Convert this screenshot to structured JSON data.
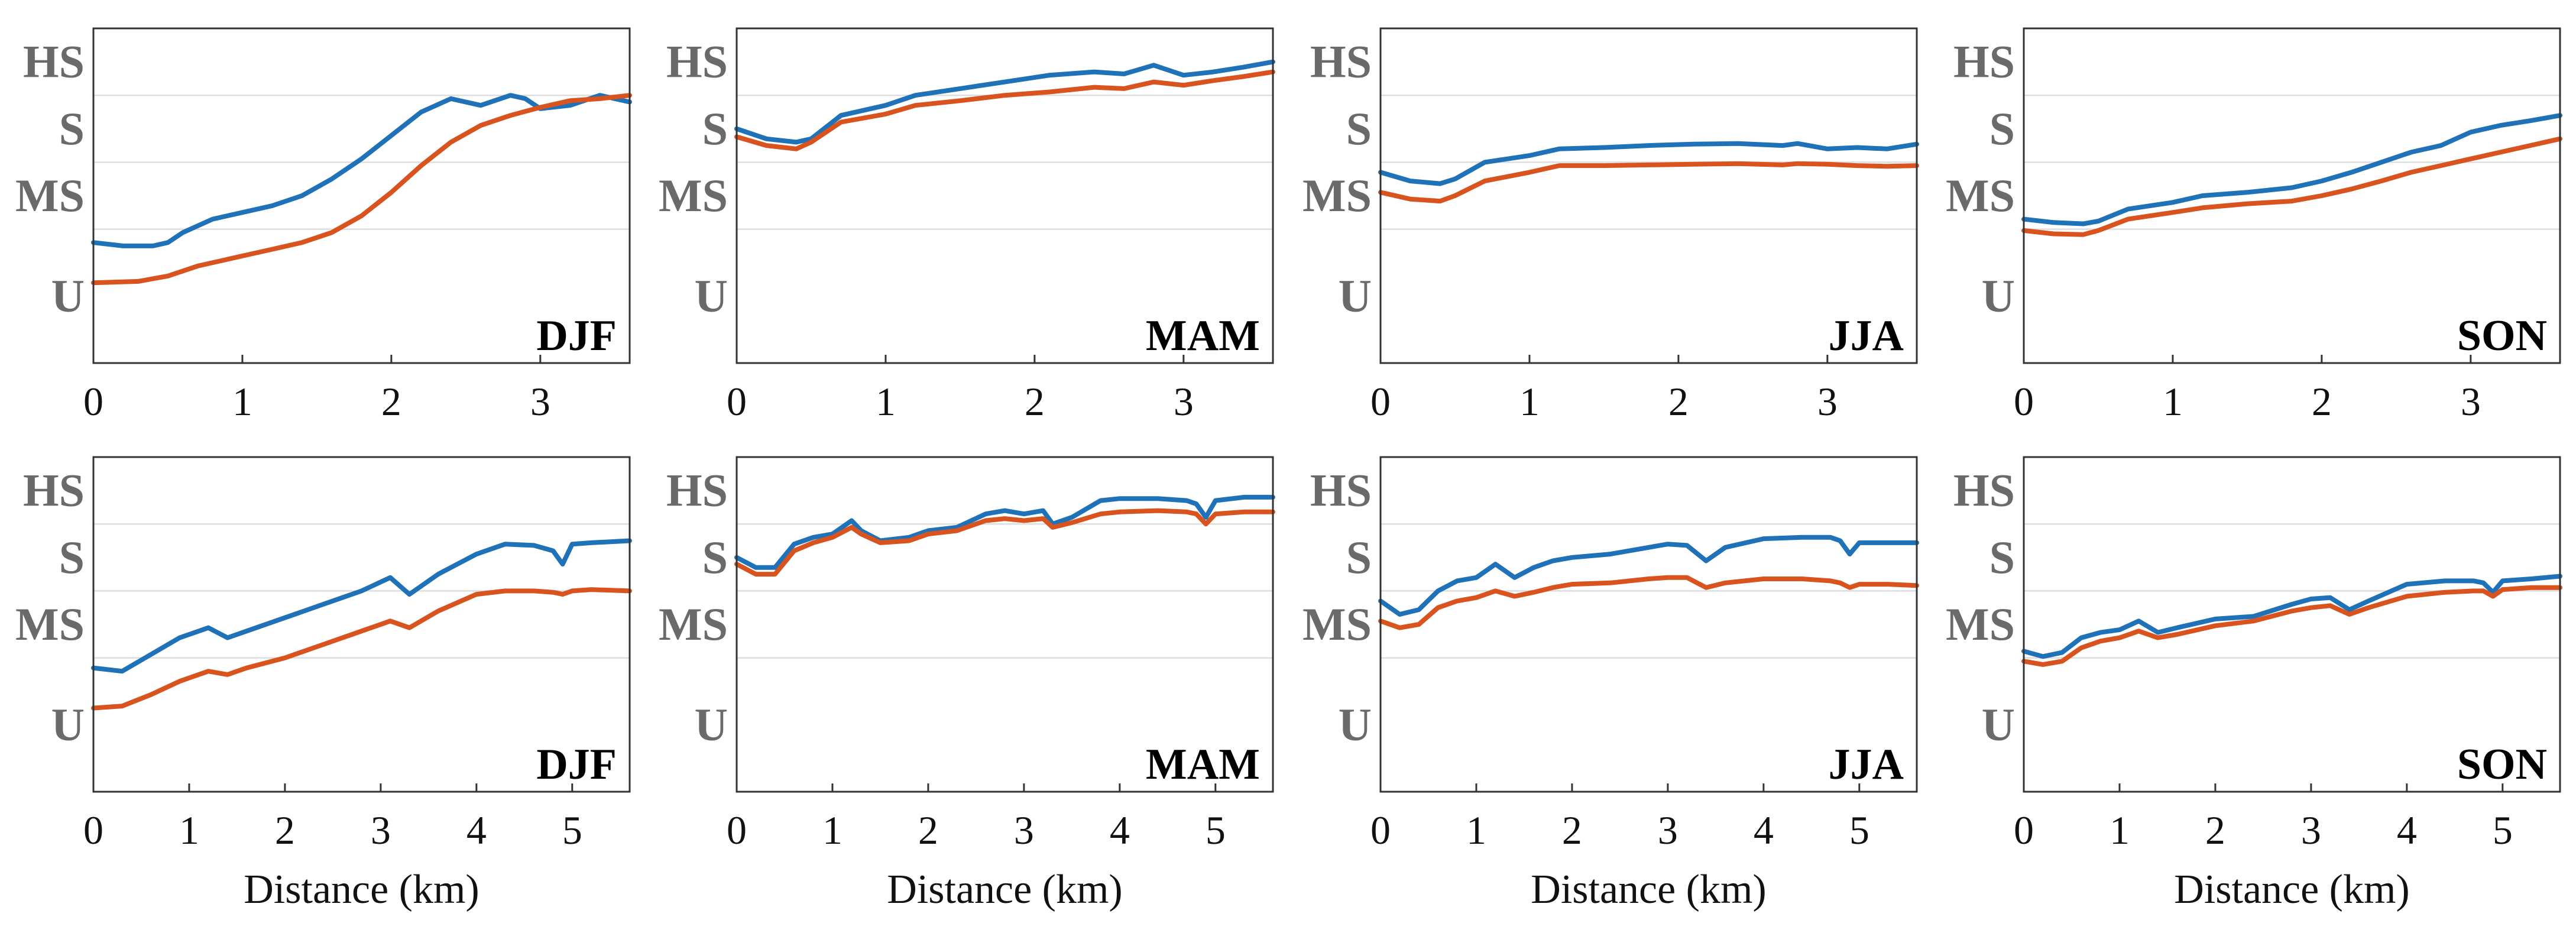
{
  "colors": {
    "blue": "#1f72b8",
    "orange": "#d9531e",
    "grid": "#dddddd",
    "axis": "#333333"
  },
  "y_levels": [
    "U",
    "MS",
    "S",
    "HS"
  ],
  "chart_data": [
    {
      "type": "line",
      "row": 0,
      "col": 0,
      "title": "DJF",
      "xlabel": "",
      "xlim": [
        0,
        3.6
      ],
      "xticks": [
        0,
        1,
        2,
        3
      ],
      "ylim": [
        0,
        5
      ],
      "yticks": [
        {
          "label": "U",
          "value": 1
        },
        {
          "label": "MS",
          "value": 2.5
        },
        {
          "label": "S",
          "value": 3.5
        },
        {
          "label": "HS",
          "value": 4.5
        }
      ],
      "gridlines": [
        2,
        3,
        4
      ],
      "series": [
        {
          "name": "blue",
          "color": "#1f72b8",
          "x": [
            0,
            0.2,
            0.4,
            0.5,
            0.6,
            0.8,
            1.0,
            1.2,
            1.4,
            1.6,
            1.8,
            2.0,
            2.2,
            2.4,
            2.6,
            2.8,
            2.9,
            3.0,
            3.2,
            3.4,
            3.6
          ],
          "y": [
            1.8,
            1.75,
            1.75,
            1.8,
            1.95,
            2.15,
            2.25,
            2.35,
            2.5,
            2.75,
            3.05,
            3.4,
            3.75,
            3.95,
            3.85,
            4.0,
            3.95,
            3.8,
            3.85,
            4.0,
            3.9
          ]
        },
        {
          "name": "orange",
          "color": "#d9531e",
          "x": [
            0,
            0.3,
            0.5,
            0.7,
            1.0,
            1.2,
            1.4,
            1.6,
            1.8,
            2.0,
            2.2,
            2.4,
            2.6,
            2.8,
            3.0,
            3.2,
            3.4,
            3.6
          ],
          "y": [
            1.2,
            1.22,
            1.3,
            1.45,
            1.6,
            1.7,
            1.8,
            1.95,
            2.2,
            2.55,
            2.95,
            3.3,
            3.55,
            3.7,
            3.82,
            3.92,
            3.95,
            4.0
          ]
        }
      ]
    },
    {
      "type": "line",
      "row": 0,
      "col": 1,
      "title": "MAM",
      "xlabel": "",
      "xlim": [
        0,
        3.6
      ],
      "xticks": [
        0,
        1,
        2,
        3
      ],
      "ylim": [
        0,
        5
      ],
      "yticks": [
        {
          "label": "U",
          "value": 1
        },
        {
          "label": "MS",
          "value": 2.5
        },
        {
          "label": "S",
          "value": 3.5
        },
        {
          "label": "HS",
          "value": 4.5
        }
      ],
      "gridlines": [
        2,
        3,
        4
      ],
      "series": [
        {
          "name": "blue",
          "color": "#1f72b8",
          "x": [
            0,
            0.2,
            0.4,
            0.5,
            0.7,
            1.0,
            1.2,
            1.5,
            1.8,
            2.1,
            2.4,
            2.6,
            2.8,
            3.0,
            3.2,
            3.4,
            3.6
          ],
          "y": [
            3.5,
            3.35,
            3.3,
            3.35,
            3.7,
            3.85,
            4.0,
            4.1,
            4.2,
            4.3,
            4.35,
            4.32,
            4.45,
            4.3,
            4.35,
            4.42,
            4.5
          ]
        },
        {
          "name": "orange",
          "color": "#d9531e",
          "x": [
            0,
            0.2,
            0.4,
            0.5,
            0.7,
            1.0,
            1.2,
            1.5,
            1.8,
            2.1,
            2.4,
            2.6,
            2.8,
            3.0,
            3.2,
            3.4,
            3.6
          ],
          "y": [
            3.38,
            3.25,
            3.2,
            3.3,
            3.6,
            3.72,
            3.85,
            3.92,
            4.0,
            4.05,
            4.12,
            4.1,
            4.2,
            4.15,
            4.22,
            4.28,
            4.35
          ]
        }
      ]
    },
    {
      "type": "line",
      "row": 0,
      "col": 2,
      "title": "JJA",
      "xlabel": "",
      "xlim": [
        0,
        3.6
      ],
      "xticks": [
        0,
        1,
        2,
        3
      ],
      "ylim": [
        0,
        5
      ],
      "yticks": [
        {
          "label": "U",
          "value": 1
        },
        {
          "label": "MS",
          "value": 2.5
        },
        {
          "label": "S",
          "value": 3.5
        },
        {
          "label": "HS",
          "value": 4.5
        }
      ],
      "gridlines": [
        2,
        3,
        4
      ],
      "series": [
        {
          "name": "blue",
          "color": "#1f72b8",
          "x": [
            0,
            0.2,
            0.4,
            0.5,
            0.7,
            1.0,
            1.2,
            1.5,
            1.8,
            2.1,
            2.4,
            2.7,
            2.8,
            3.0,
            3.2,
            3.4,
            3.6
          ],
          "y": [
            2.85,
            2.72,
            2.68,
            2.75,
            3.0,
            3.1,
            3.2,
            3.22,
            3.25,
            3.27,
            3.28,
            3.25,
            3.28,
            3.2,
            3.22,
            3.2,
            3.27
          ]
        },
        {
          "name": "orange",
          "color": "#d9531e",
          "x": [
            0,
            0.2,
            0.4,
            0.5,
            0.7,
            1.0,
            1.2,
            1.5,
            1.8,
            2.1,
            2.4,
            2.7,
            2.8,
            3.0,
            3.2,
            3.4,
            3.6
          ],
          "y": [
            2.55,
            2.45,
            2.42,
            2.5,
            2.72,
            2.85,
            2.95,
            2.95,
            2.96,
            2.97,
            2.98,
            2.96,
            2.98,
            2.97,
            2.95,
            2.94,
            2.95
          ]
        }
      ]
    },
    {
      "type": "line",
      "row": 0,
      "col": 3,
      "title": "SON",
      "xlabel": "",
      "xlim": [
        0,
        3.6
      ],
      "xticks": [
        0,
        1,
        2,
        3
      ],
      "ylim": [
        0,
        5
      ],
      "yticks": [
        {
          "label": "U",
          "value": 1
        },
        {
          "label": "MS",
          "value": 2.5
        },
        {
          "label": "S",
          "value": 3.5
        },
        {
          "label": "HS",
          "value": 4.5
        }
      ],
      "gridlines": [
        2,
        3,
        4
      ],
      "series": [
        {
          "name": "blue",
          "color": "#1f72b8",
          "x": [
            0,
            0.2,
            0.4,
            0.5,
            0.7,
            1.0,
            1.2,
            1.5,
            1.8,
            2.0,
            2.2,
            2.4,
            2.6,
            2.8,
            3.0,
            3.2,
            3.4,
            3.6
          ],
          "y": [
            2.15,
            2.1,
            2.08,
            2.12,
            2.3,
            2.4,
            2.5,
            2.55,
            2.62,
            2.72,
            2.85,
            3.0,
            3.15,
            3.25,
            3.45,
            3.55,
            3.62,
            3.7
          ]
        },
        {
          "name": "orange",
          "color": "#d9531e",
          "x": [
            0,
            0.2,
            0.4,
            0.5,
            0.7,
            1.0,
            1.2,
            1.5,
            1.8,
            2.0,
            2.2,
            2.4,
            2.6,
            2.8,
            3.0,
            3.2,
            3.4,
            3.6
          ],
          "y": [
            1.98,
            1.93,
            1.92,
            1.98,
            2.15,
            2.25,
            2.32,
            2.38,
            2.42,
            2.5,
            2.6,
            2.72,
            2.85,
            2.95,
            3.05,
            3.15,
            3.25,
            3.35
          ]
        }
      ]
    },
    {
      "type": "line",
      "row": 1,
      "col": 0,
      "title": "DJF",
      "xlabel": "Distance (km)",
      "xlim": [
        0,
        5.6
      ],
      "xticks": [
        0,
        1,
        2,
        3,
        4,
        5
      ],
      "ylim": [
        0,
        5
      ],
      "yticks": [
        {
          "label": "U",
          "value": 1
        },
        {
          "label": "MS",
          "value": 2.5
        },
        {
          "label": "S",
          "value": 3.5
        },
        {
          "label": "HS",
          "value": 4.5
        }
      ],
      "gridlines": [
        2,
        3,
        4
      ],
      "series": [
        {
          "name": "blue",
          "color": "#1f72b8",
          "x": [
            0,
            0.3,
            0.6,
            0.9,
            1.2,
            1.4,
            1.6,
            2.0,
            2.4,
            2.8,
            3.1,
            3.3,
            3.6,
            4.0,
            4.3,
            4.6,
            4.8,
            4.9,
            5.0,
            5.2,
            5.6
          ],
          "y": [
            1.85,
            1.8,
            2.05,
            2.3,
            2.45,
            2.3,
            2.4,
            2.6,
            2.8,
            3.0,
            3.2,
            2.95,
            3.25,
            3.55,
            3.7,
            3.68,
            3.6,
            3.4,
            3.7,
            3.72,
            3.75
          ]
        },
        {
          "name": "orange",
          "color": "#d9531e",
          "x": [
            0,
            0.3,
            0.6,
            0.9,
            1.2,
            1.4,
            1.6,
            2.0,
            2.4,
            2.8,
            3.1,
            3.3,
            3.6,
            4.0,
            4.3,
            4.6,
            4.8,
            4.9,
            5.0,
            5.2,
            5.6
          ],
          "y": [
            1.25,
            1.28,
            1.45,
            1.65,
            1.8,
            1.75,
            1.85,
            2.0,
            2.2,
            2.4,
            2.55,
            2.45,
            2.7,
            2.95,
            3.0,
            3.0,
            2.98,
            2.95,
            3.0,
            3.02,
            3.0
          ]
        }
      ]
    },
    {
      "type": "line",
      "row": 1,
      "col": 1,
      "title": "MAM",
      "xlabel": "Distance (km)",
      "xlim": [
        0,
        5.6
      ],
      "xticks": [
        0,
        1,
        2,
        3,
        4,
        5
      ],
      "ylim": [
        0,
        5
      ],
      "yticks": [
        {
          "label": "U",
          "value": 1
        },
        {
          "label": "MS",
          "value": 2.5
        },
        {
          "label": "S",
          "value": 3.5
        },
        {
          "label": "HS",
          "value": 4.5
        }
      ],
      "gridlines": [
        2,
        3,
        4
      ],
      "series": [
        {
          "name": "blue",
          "color": "#1f72b8",
          "x": [
            0,
            0.2,
            0.4,
            0.6,
            0.8,
            1.0,
            1.2,
            1.3,
            1.5,
            1.8,
            2.0,
            2.3,
            2.6,
            2.8,
            3.0,
            3.2,
            3.3,
            3.5,
            3.8,
            4.0,
            4.4,
            4.7,
            4.8,
            4.9,
            5.0,
            5.3,
            5.6
          ],
          "y": [
            3.5,
            3.35,
            3.35,
            3.7,
            3.8,
            3.85,
            4.05,
            3.9,
            3.75,
            3.8,
            3.9,
            3.95,
            4.15,
            4.2,
            4.15,
            4.2,
            4.0,
            4.1,
            4.35,
            4.38,
            4.38,
            4.35,
            4.3,
            4.1,
            4.35,
            4.4,
            4.4
          ]
        },
        {
          "name": "orange",
          "color": "#d9531e",
          "x": [
            0,
            0.2,
            0.4,
            0.6,
            0.8,
            1.0,
            1.2,
            1.3,
            1.5,
            1.8,
            2.0,
            2.3,
            2.6,
            2.8,
            3.0,
            3.2,
            3.3,
            3.5,
            3.8,
            4.0,
            4.4,
            4.7,
            4.8,
            4.9,
            5.0,
            5.3,
            5.6
          ],
          "y": [
            3.4,
            3.25,
            3.25,
            3.6,
            3.72,
            3.8,
            3.95,
            3.85,
            3.72,
            3.75,
            3.85,
            3.9,
            4.05,
            4.08,
            4.05,
            4.08,
            3.95,
            4.02,
            4.15,
            4.18,
            4.2,
            4.18,
            4.15,
            4.0,
            4.15,
            4.18,
            4.18
          ]
        }
      ]
    },
    {
      "type": "line",
      "row": 1,
      "col": 2,
      "title": "JJA",
      "xlabel": "Distance (km)",
      "xlim": [
        0,
        5.6
      ],
      "xticks": [
        0,
        1,
        2,
        3,
        4,
        5
      ],
      "ylim": [
        0,
        5
      ],
      "yticks": [
        {
          "label": "U",
          "value": 1
        },
        {
          "label": "MS",
          "value": 2.5
        },
        {
          "label": "S",
          "value": 3.5
        },
        {
          "label": "HS",
          "value": 4.5
        }
      ],
      "gridlines": [
        2,
        3,
        4
      ],
      "series": [
        {
          "name": "blue",
          "color": "#1f72b8",
          "x": [
            0,
            0.2,
            0.4,
            0.6,
            0.8,
            1.0,
            1.2,
            1.4,
            1.6,
            1.8,
            2.0,
            2.4,
            2.8,
            3.0,
            3.2,
            3.4,
            3.6,
            4.0,
            4.4,
            4.7,
            4.8,
            4.9,
            5.0,
            5.3,
            5.6
          ],
          "y": [
            2.85,
            2.65,
            2.72,
            3.0,
            3.15,
            3.2,
            3.4,
            3.2,
            3.35,
            3.45,
            3.5,
            3.55,
            3.65,
            3.7,
            3.68,
            3.45,
            3.65,
            3.78,
            3.8,
            3.8,
            3.75,
            3.55,
            3.72,
            3.72,
            3.72
          ]
        },
        {
          "name": "orange",
          "color": "#d9531e",
          "x": [
            0,
            0.2,
            0.4,
            0.6,
            0.8,
            1.0,
            1.2,
            1.4,
            1.6,
            1.8,
            2.0,
            2.4,
            2.8,
            3.0,
            3.2,
            3.4,
            3.6,
            4.0,
            4.4,
            4.7,
            4.8,
            4.9,
            5.0,
            5.3,
            5.6
          ],
          "y": [
            2.55,
            2.45,
            2.5,
            2.75,
            2.85,
            2.9,
            3.0,
            2.92,
            2.98,
            3.05,
            3.1,
            3.12,
            3.18,
            3.2,
            3.2,
            3.05,
            3.12,
            3.18,
            3.18,
            3.15,
            3.12,
            3.05,
            3.1,
            3.1,
            3.08
          ]
        }
      ]
    },
    {
      "type": "line",
      "row": 1,
      "col": 3,
      "title": "SON",
      "xlabel": "Distance (km)",
      "xlim": [
        0,
        5.6
      ],
      "xticks": [
        0,
        1,
        2,
        3,
        4,
        5
      ],
      "ylim": [
        0,
        5
      ],
      "yticks": [
        {
          "label": "U",
          "value": 1
        },
        {
          "label": "MS",
          "value": 2.5
        },
        {
          "label": "S",
          "value": 3.5
        },
        {
          "label": "HS",
          "value": 4.5
        }
      ],
      "gridlines": [
        2,
        3,
        4
      ],
      "series": [
        {
          "name": "blue",
          "color": "#1f72b8",
          "x": [
            0,
            0.2,
            0.4,
            0.6,
            0.8,
            1.0,
            1.2,
            1.4,
            1.6,
            2.0,
            2.4,
            2.8,
            3.0,
            3.2,
            3.4,
            3.6,
            4.0,
            4.4,
            4.7,
            4.8,
            4.9,
            5.0,
            5.3,
            5.6
          ],
          "y": [
            2.1,
            2.02,
            2.08,
            2.3,
            2.38,
            2.42,
            2.55,
            2.38,
            2.45,
            2.58,
            2.62,
            2.8,
            2.88,
            2.9,
            2.72,
            2.85,
            3.1,
            3.15,
            3.15,
            3.12,
            2.98,
            3.15,
            3.18,
            3.22
          ]
        },
        {
          "name": "orange",
          "color": "#d9531e",
          "x": [
            0,
            0.2,
            0.4,
            0.6,
            0.8,
            1.0,
            1.2,
            1.4,
            1.6,
            2.0,
            2.4,
            2.8,
            3.0,
            3.2,
            3.4,
            3.6,
            4.0,
            4.4,
            4.7,
            4.8,
            4.9,
            5.0,
            5.3,
            5.6
          ],
          "y": [
            1.95,
            1.9,
            1.95,
            2.15,
            2.25,
            2.3,
            2.4,
            2.3,
            2.35,
            2.48,
            2.55,
            2.7,
            2.75,
            2.78,
            2.65,
            2.75,
            2.92,
            2.98,
            3.0,
            3.0,
            2.92,
            3.02,
            3.05,
            3.05
          ]
        }
      ]
    }
  ]
}
